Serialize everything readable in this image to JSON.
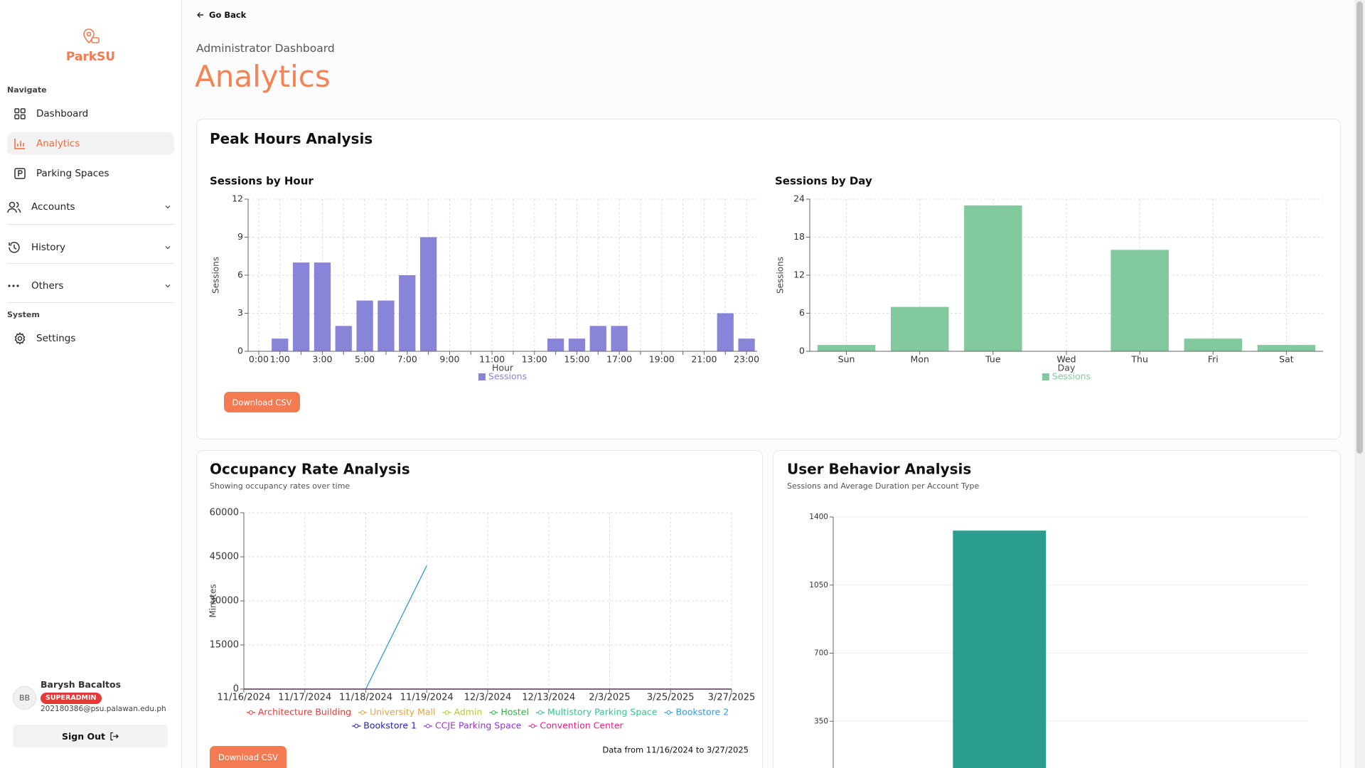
{
  "sidebar": {
    "brand": "ParkSU",
    "navigate_heading": "Navigate",
    "nav": [
      "Dashboard",
      "Analytics",
      "Parking Spaces"
    ],
    "groups": [
      "Accounts",
      "History",
      "Others"
    ],
    "system_heading": "System",
    "settings": "Settings",
    "user": {
      "initials": "BB",
      "name": "Barysh Bacaltos",
      "role": "SUPERADMIN",
      "email": "202180386@psu.palawan.edu.ph"
    },
    "sign_out": "Sign Out"
  },
  "header": {
    "back": "Go Back",
    "breadcrumb": "Administrator Dashboard",
    "title": "Analytics"
  },
  "peak_hours": {
    "title": "Peak Hours Analysis",
    "download": "Download CSV"
  },
  "occupancy": {
    "download": "Download CSV"
  },
  "chart_data": [
    {
      "type": "bar",
      "title": "Sessions by Hour",
      "x_label": "Hour",
      "y_label": "Sessions",
      "categories": [
        "0:00",
        "1:00",
        null,
        "3:00",
        null,
        "5:00",
        null,
        "7:00",
        null,
        "9:00",
        null,
        "11:00",
        null,
        "13:00",
        null,
        "15:00",
        null,
        "17:00",
        null,
        "19:00",
        null,
        "21:00",
        null,
        "23:00"
      ],
      "series": [
        {
          "name": "Sessions",
          "color": "#8884d8",
          "values": [
            0,
            1,
            7,
            7,
            2,
            4,
            4,
            6,
            9,
            0,
            0,
            0,
            0,
            0,
            1,
            1,
            2,
            2,
            0,
            0,
            0,
            0,
            3,
            1
          ]
        }
      ],
      "ylim": [
        0,
        12
      ],
      "yticks": [
        0,
        3,
        6,
        9,
        12
      ],
      "grid": true
    },
    {
      "type": "bar",
      "title": "Sessions by Day",
      "x_label": "Day",
      "y_label": "Sessions",
      "categories": [
        "Sun",
        "Mon",
        "Tue",
        "Wed",
        "Thu",
        "Fri",
        "Sat"
      ],
      "series": [
        {
          "name": "Sessions",
          "color": "#82ca9d",
          "values": [
            1,
            7,
            23,
            0,
            16,
            2,
            1
          ]
        }
      ],
      "ylim": [
        0,
        24
      ],
      "yticks": [
        0,
        6,
        12,
        18,
        24
      ],
      "grid": true
    },
    {
      "type": "line",
      "title": "Occupancy Rate Analysis",
      "subtitle": "Showing occupancy rates over time",
      "annotation": "Data from 11/16/2024 to 3/27/2025",
      "y_label": "Minutes",
      "categories": [
        "11/16/2024",
        "11/17/2024",
        "11/18/2024",
        "11/19/2024",
        "12/3/2024",
        "12/13/2024",
        "2/3/2025",
        "3/25/2025",
        "3/27/2025"
      ],
      "series": [
        {
          "name": "Architecture Building",
          "color": "#e53935",
          "values": [
            0,
            0,
            0,
            0,
            0,
            0,
            0,
            0,
            0
          ]
        },
        {
          "name": "University Mall",
          "color": "#e6a23c",
          "values": [
            0,
            0,
            0,
            0,
            0,
            0,
            0,
            0,
            0
          ]
        },
        {
          "name": "Admin",
          "color": "#b5c934",
          "values": [
            0,
            0,
            0,
            0,
            0,
            0,
            0,
            0,
            0
          ]
        },
        {
          "name": "Hostel",
          "color": "#2fb344",
          "values": [
            0,
            0,
            0,
            0,
            0,
            0,
            0,
            0,
            0
          ]
        },
        {
          "name": "Multistory Parking Space",
          "color": "#34c38f",
          "values": [
            0,
            0,
            0,
            0,
            0,
            0,
            0,
            0,
            0
          ]
        },
        {
          "name": "Bookstore 2",
          "color": "#3498db",
          "values": [
            null,
            null,
            0,
            42000,
            null,
            null,
            null,
            null,
            null
          ]
        },
        {
          "name": "Bookstore 1",
          "color": "#1f1fbf",
          "values": [
            0,
            0,
            0,
            0,
            0,
            0,
            0,
            0,
            0
          ]
        },
        {
          "name": "CCJE Parking Space",
          "color": "#9b30d9",
          "values": [
            0,
            0,
            0,
            0,
            0,
            0,
            0,
            0,
            0
          ]
        },
        {
          "name": "Convention Center",
          "color": "#e91e8c",
          "values": [
            0,
            0,
            0,
            0,
            0,
            0,
            0,
            0,
            0
          ]
        }
      ],
      "ylim": [
        0,
        60000
      ],
      "yticks": [
        0,
        15000,
        30000,
        45000,
        60000
      ],
      "grid": true
    },
    {
      "type": "bar",
      "title": "User Behavior Analysis",
      "subtitle": "Sessions and Average Duration per Account Type",
      "categories": [
        null
      ],
      "values": [
        1330
      ],
      "color": "#2a9d8f",
      "ylim": [
        0,
        1400
      ],
      "yticks": [
        350,
        700,
        1050,
        1400
      ],
      "grid": true
    }
  ]
}
